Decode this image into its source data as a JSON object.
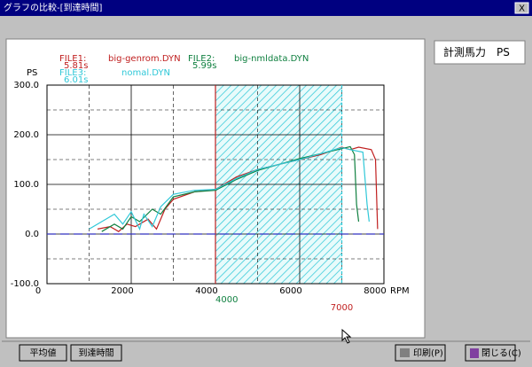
{
  "window": {
    "title": "グラフの比較-[到達時間]",
    "close": "X"
  },
  "side_label": "計測馬力　PS",
  "buttons": {
    "average": "平均値",
    "arrival": "到達時間",
    "print": "印刷(P)",
    "close": "閉じる(C)"
  },
  "chart_data": {
    "type": "line",
    "y_label": "PS",
    "x_label": "RPM",
    "xlim": [
      0,
      8000
    ],
    "xticks": [
      0,
      2000,
      4000,
      6000,
      8000
    ],
    "ylim": [
      -100,
      300
    ],
    "yticks": [
      {
        "value": -100,
        "label": "-100.0"
      },
      {
        "value": 0,
        "label": "0.0"
      },
      {
        "value": 100,
        "label": "100.0"
      },
      {
        "value": 200,
        "label": "200.0"
      },
      {
        "value": 300,
        "label": "300.0"
      }
    ],
    "grid": true,
    "highlight": [
      4000,
      7000
    ],
    "series": [
      {
        "name": "big-genrom.DYN",
        "file": "FILE1:",
        "time": "5.81s",
        "color": "#c02020",
        "x": [
          1200,
          1500,
          1700,
          1900,
          2100,
          2400,
          2600,
          2800,
          3000,
          3500,
          4000,
          4500,
          5000,
          5500,
          6000,
          6500,
          7000,
          7200,
          7400,
          7700,
          7800,
          7850
        ],
        "values": [
          10,
          15,
          5,
          20,
          15,
          30,
          10,
          50,
          70,
          85,
          90,
          115,
          130,
          140,
          150,
          160,
          175,
          170,
          175,
          170,
          150,
          10
        ]
      },
      {
        "name": "big-nmldata.DYN",
        "file": "FILE2:",
        "time": "5.99s",
        "color": "#108040",
        "x": [
          1300,
          1600,
          1800,
          2000,
          2200,
          2500,
          2700,
          3000,
          3500,
          4000,
          4500,
          5000,
          5500,
          6000,
          6500,
          7000,
          7200,
          7300,
          7350,
          7400
        ],
        "values": [
          5,
          20,
          10,
          35,
          25,
          50,
          40,
          75,
          85,
          88,
          110,
          128,
          140,
          152,
          162,
          172,
          176,
          160,
          60,
          25
        ]
      },
      {
        "name": "nomal.DYN",
        "file": "FILE3:",
        "time": "6.01s",
        "color": "#30c8d8",
        "x": [
          1000,
          1300,
          1600,
          1800,
          2000,
          2200,
          2300,
          2500,
          2700,
          3000,
          3500,
          4000,
          4500,
          5000,
          5500,
          6000,
          6500,
          7000,
          7200,
          7500,
          7600,
          7650
        ],
        "values": [
          10,
          25,
          40,
          20,
          45,
          10,
          40,
          15,
          55,
          80,
          88,
          90,
          112,
          130,
          140,
          150,
          162,
          174,
          170,
          165,
          60,
          25
        ]
      }
    ]
  }
}
